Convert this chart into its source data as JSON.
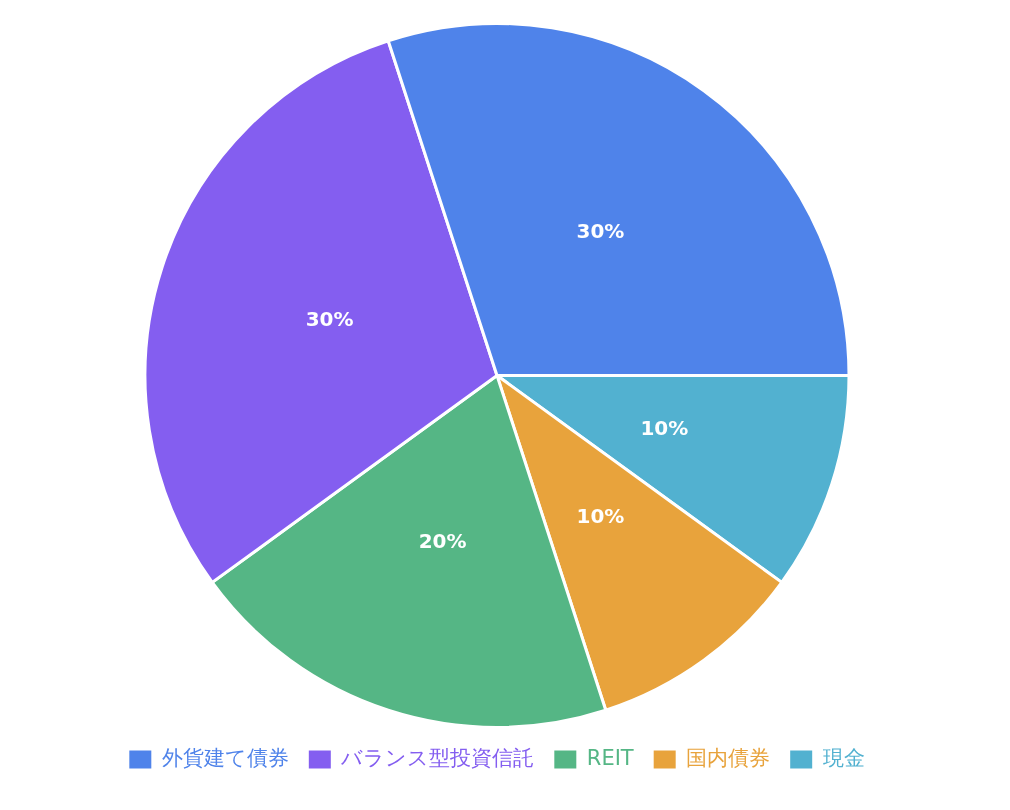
{
  "chart_data": {
    "type": "pie",
    "categories": [
      "外貨建て債券",
      "バランス型投資信託",
      "REIT",
      "国内債券",
      "現金"
    ],
    "values": [
      30,
      30,
      20,
      10,
      10
    ],
    "colors": [
      "#4f83ea",
      "#845ef0",
      "#55b685",
      "#e8a33c",
      "#52b1d0"
    ],
    "value_labels": [
      "30%",
      "30%",
      "20%",
      "10%",
      "10%"
    ],
    "legend": "bottom"
  }
}
